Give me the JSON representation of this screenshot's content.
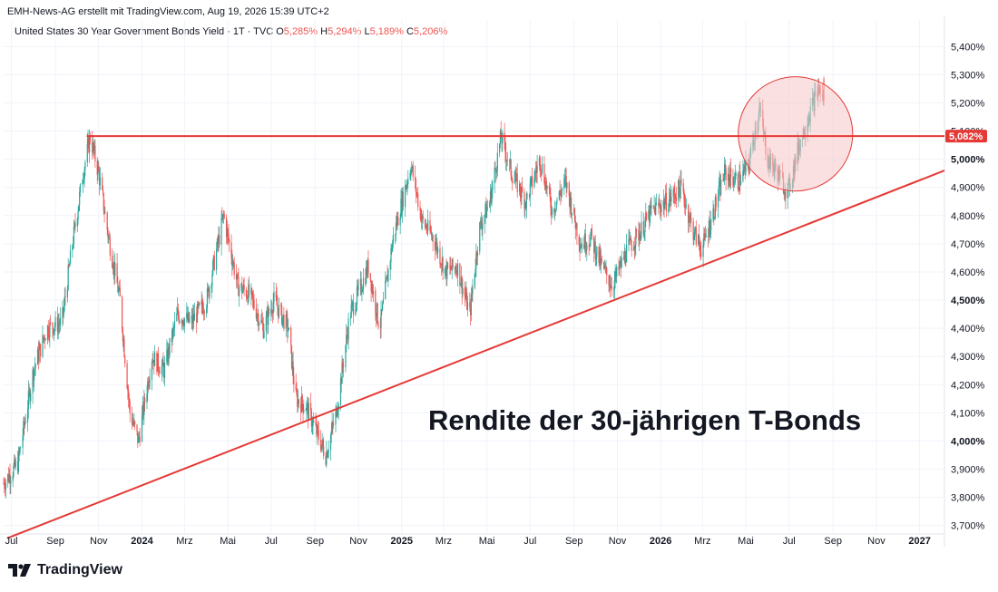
{
  "header": {
    "credit": "EMH-News-AG erstellt mit TradingView.com, Aug 19, 2026 15:39 UTC+2",
    "symbol": "United States 30 Year Government Bonds Yield · 1T · TVC",
    "o_label": "O",
    "o_value": "5,285%",
    "h_label": "H",
    "h_value": "5,294%",
    "l_label": "L",
    "l_value": "5,189%",
    "c_label": "C",
    "c_value": "5,206%",
    "unit": "%"
  },
  "footer": {
    "brand": "TradingView"
  },
  "colors": {
    "up": "#26a69a",
    "down": "#ef5350",
    "line": "#e53935",
    "circle_fill": "#f8c6c9",
    "circle_stroke": "#e53935"
  },
  "chart_data": {
    "type": "candlestick",
    "title": "Rendite der 30-jährigen T-Bonds",
    "annotation": "Rendite der 30-jährigen T-Bonds",
    "y_axis": {
      "range": [
        3.67,
        5.43
      ],
      "ticks": [
        "3,700%",
        "3,800%",
        "3,900%",
        "4,000%",
        "4,100%",
        "4,200%",
        "4,300%",
        "4,400%",
        "4,500%",
        "4,600%",
        "4,700%",
        "4,800%",
        "4,900%",
        "5,000%",
        "5,100%",
        "5,200%",
        "5,300%",
        "5,400%"
      ],
      "tick_values": [
        3.7,
        3.8,
        3.9,
        4.0,
        4.1,
        4.2,
        4.3,
        4.4,
        4.5,
        4.6,
        4.7,
        4.8,
        4.9,
        5.0,
        5.1,
        5.2,
        5.3,
        5.4
      ],
      "bold_ticks": [
        "4,000%",
        "4,500%",
        "5,000%"
      ]
    },
    "x_axis": {
      "range": [
        "2023-06-20",
        "2027-02-05"
      ],
      "labels": [
        {
          "text": "Jul",
          "date": "2023-07-01",
          "bold": false
        },
        {
          "text": "Sep",
          "date": "2023-09-01",
          "bold": false
        },
        {
          "text": "Nov",
          "date": "2023-11-01",
          "bold": false
        },
        {
          "text": "2024",
          "date": "2024-01-01",
          "bold": true
        },
        {
          "text": "Mrz",
          "date": "2024-03-01",
          "bold": false
        },
        {
          "text": "Mai",
          "date": "2024-05-01",
          "bold": false
        },
        {
          "text": "Jul",
          "date": "2024-07-01",
          "bold": false
        },
        {
          "text": "Sep",
          "date": "2024-09-01",
          "bold": false
        },
        {
          "text": "Nov",
          "date": "2024-11-01",
          "bold": false
        },
        {
          "text": "2025",
          "date": "2025-01-01",
          "bold": true
        },
        {
          "text": "Mrz",
          "date": "2025-03-01",
          "bold": false
        },
        {
          "text": "Mai",
          "date": "2025-05-01",
          "bold": false
        },
        {
          "text": "Jul",
          "date": "2025-07-01",
          "bold": false
        },
        {
          "text": "Sep",
          "date": "2025-09-01",
          "bold": false
        },
        {
          "text": "Nov",
          "date": "2025-11-01",
          "bold": false
        },
        {
          "text": "2026",
          "date": "2026-01-01",
          "bold": true
        },
        {
          "text": "Mrz",
          "date": "2026-03-01",
          "bold": false
        },
        {
          "text": "Mai",
          "date": "2026-05-01",
          "bold": false
        },
        {
          "text": "Jul",
          "date": "2026-07-01",
          "bold": false
        },
        {
          "text": "Sep",
          "date": "2026-09-01",
          "bold": false
        },
        {
          "text": "Nov",
          "date": "2026-11-01",
          "bold": false
        },
        {
          "text": "2027",
          "date": "2027-01-01",
          "bold": true
        }
      ]
    },
    "price_path": [
      [
        "2023-06-20",
        3.85
      ],
      [
        "2023-07-10",
        3.92
      ],
      [
        "2023-08-01",
        4.25
      ],
      [
        "2023-08-20",
        4.4
      ],
      [
        "2023-09-10",
        4.42
      ],
      [
        "2023-09-25",
        4.7
      ],
      [
        "2023-10-10",
        4.95
      ],
      [
        "2023-10-20",
        5.08
      ],
      [
        "2023-11-01",
        4.95
      ],
      [
        "2023-11-15",
        4.72
      ],
      [
        "2023-12-01",
        4.5
      ],
      [
        "2023-12-15",
        4.1
      ],
      [
        "2023-12-27",
        4.0
      ],
      [
        "2024-01-15",
        4.3
      ],
      [
        "2024-02-01",
        4.25
      ],
      [
        "2024-02-20",
        4.45
      ],
      [
        "2024-03-10",
        4.42
      ],
      [
        "2024-04-01",
        4.5
      ],
      [
        "2024-04-25",
        4.8
      ],
      [
        "2024-05-15",
        4.55
      ],
      [
        "2024-06-01",
        4.52
      ],
      [
        "2024-06-20",
        4.4
      ],
      [
        "2024-07-05",
        4.5
      ],
      [
        "2024-07-25",
        4.4
      ],
      [
        "2024-08-05",
        4.15
      ],
      [
        "2024-08-20",
        4.12
      ],
      [
        "2024-09-16",
        3.95
      ],
      [
        "2024-10-01",
        4.1
      ],
      [
        "2024-10-20",
        4.45
      ],
      [
        "2024-11-05",
        4.55
      ],
      [
        "2024-11-15",
        4.62
      ],
      [
        "2024-12-01",
        4.4
      ],
      [
        "2024-12-20",
        4.72
      ],
      [
        "2025-01-14",
        4.98
      ],
      [
        "2025-01-30",
        4.78
      ],
      [
        "2025-02-15",
        4.72
      ],
      [
        "2025-03-04",
        4.6
      ],
      [
        "2025-03-20",
        4.62
      ],
      [
        "2025-04-07",
        4.45
      ],
      [
        "2025-04-20",
        4.75
      ],
      [
        "2025-05-05",
        4.85
      ],
      [
        "2025-05-21",
        5.08
      ],
      [
        "2025-06-05",
        4.95
      ],
      [
        "2025-06-25",
        4.85
      ],
      [
        "2025-07-15",
        5.0
      ],
      [
        "2025-08-01",
        4.82
      ],
      [
        "2025-08-20",
        4.92
      ],
      [
        "2025-09-10",
        4.7
      ],
      [
        "2025-09-25",
        4.72
      ],
      [
        "2025-10-10",
        4.62
      ],
      [
        "2025-10-25",
        4.55
      ],
      [
        "2025-11-15",
        4.68
      ],
      [
        "2025-12-05",
        4.75
      ],
      [
        "2025-12-20",
        4.82
      ],
      [
        "2026-01-10",
        4.85
      ],
      [
        "2026-01-30",
        4.9
      ],
      [
        "2026-02-15",
        4.75
      ],
      [
        "2026-02-28",
        4.68
      ],
      [
        "2026-03-15",
        4.8
      ],
      [
        "2026-04-01",
        4.95
      ],
      [
        "2026-04-20",
        4.92
      ],
      [
        "2026-05-05",
        4.98
      ],
      [
        "2026-05-20",
        5.18
      ],
      [
        "2026-06-01",
        5.0
      ],
      [
        "2026-06-15",
        4.95
      ],
      [
        "2026-06-29",
        4.88
      ],
      [
        "2026-07-15",
        5.05
      ],
      [
        "2026-08-01",
        5.18
      ],
      [
        "2026-08-12",
        5.25
      ],
      [
        "2026-08-19",
        5.21
      ]
    ],
    "ohlc_last": {
      "open": 5.285,
      "high": 5.294,
      "low": 5.189,
      "close": 5.206
    },
    "horizontal_level": {
      "value": 5.082,
      "label": "5,082%",
      "from": "2023-10-15",
      "to": "2027-02-05"
    },
    "trendline": {
      "from": [
        "2023-06-25",
        3.655
      ],
      "to": [
        "2027-02-05",
        4.96
      ]
    },
    "highlight_circle": {
      "center": [
        "2026-07-10",
        5.09
      ],
      "radius_days": 52
    }
  }
}
